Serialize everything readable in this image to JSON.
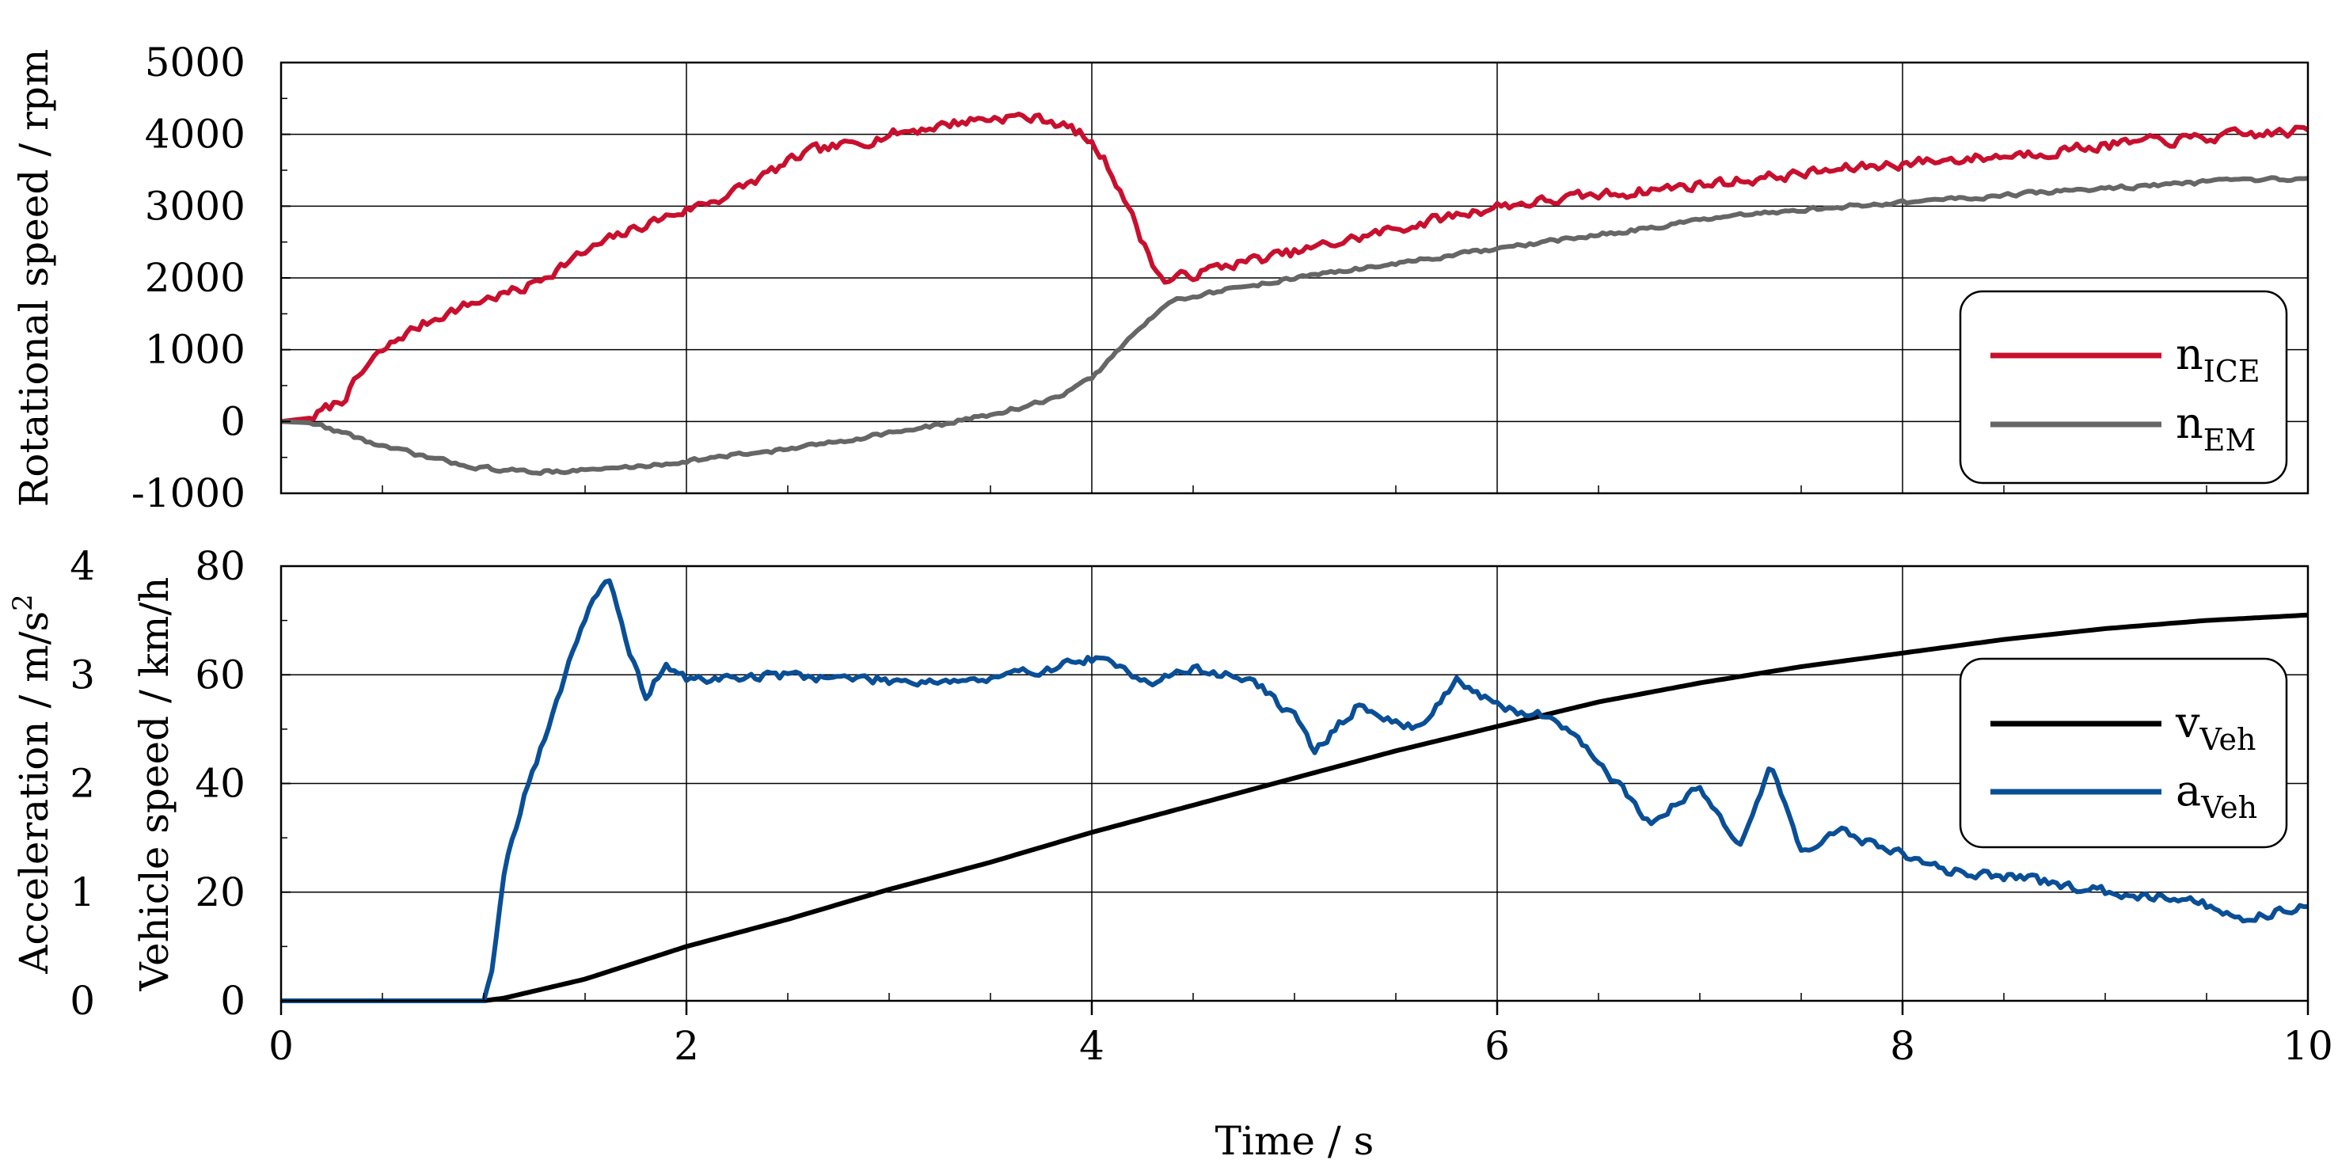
{
  "chart_data": [
    {
      "type": "line",
      "xlabel": "",
      "ylabel": "Rotational speed / rpm",
      "xlim": [
        0,
        10
      ],
      "ylim": [
        -1000,
        5000
      ],
      "xticks": [
        0,
        2,
        4,
        6,
        8,
        10
      ],
      "yticks": [
        -1000,
        0,
        1000,
        2000,
        3000,
        4000,
        5000
      ],
      "ytick_labels": [
        "-1000",
        "0",
        "1000",
        "2000",
        "3000",
        "4000",
        "5000"
      ],
      "grid": true,
      "legend": "right",
      "series": [
        {
          "name": "n",
          "subscript": "ICE",
          "color": "#c8102e",
          "x": [
            0,
            0.15,
            0.3,
            0.45,
            0.6,
            0.8,
            1.0,
            1.2,
            1.4,
            1.6,
            1.8,
            2.0,
            2.2,
            2.4,
            2.6,
            2.8,
            3.0,
            3.2,
            3.4,
            3.6,
            3.8,
            3.95,
            4.05,
            4.15,
            4.25,
            4.35,
            4.5,
            4.7,
            5.0,
            5.3,
            5.6,
            6.0,
            6.5,
            7.0,
            7.5,
            8.0,
            8.5,
            9.0,
            9.5,
            10.0
          ],
          "y": [
            0,
            50,
            300,
            850,
            1200,
            1500,
            1700,
            1850,
            2200,
            2500,
            2750,
            2950,
            3150,
            3450,
            3750,
            3850,
            4000,
            4100,
            4200,
            4250,
            4200,
            4000,
            3700,
            3200,
            2500,
            1950,
            2050,
            2200,
            2350,
            2550,
            2750,
            3000,
            3150,
            3300,
            3450,
            3600,
            3700,
            3850,
            3950,
            4050
          ],
          "noise": 120
        },
        {
          "name": "n",
          "subscript": "EM",
          "color": "#666666",
          "x": [
            0,
            0.15,
            0.3,
            0.5,
            0.8,
            1.0,
            1.2,
            1.5,
            1.8,
            2.0,
            2.3,
            2.6,
            2.9,
            3.2,
            3.5,
            3.8,
            4.0,
            4.2,
            4.4,
            4.6,
            4.8,
            5.0,
            5.5,
            6.0,
            6.5,
            7.0,
            7.5,
            8.0,
            8.5,
            9.0,
            9.5,
            10.0
          ],
          "y": [
            0,
            -20,
            -150,
            -350,
            -550,
            -650,
            -700,
            -680,
            -620,
            -550,
            -450,
            -350,
            -200,
            -80,
            100,
            300,
            600,
            1200,
            1700,
            1800,
            1900,
            2000,
            2200,
            2400,
            2600,
            2800,
            2950,
            3050,
            3150,
            3250,
            3330,
            3380
          ],
          "noise": 45
        }
      ]
    },
    {
      "type": "line",
      "xlabel": "Time / s",
      "ylabel": "Vehicle speed / km/h",
      "ylabel2": "Acceleration / m/s",
      "ylabel2_sup": "2",
      "xlim": [
        0,
        10
      ],
      "ylim": [
        0,
        80
      ],
      "ylim2": [
        0,
        4
      ],
      "xticks": [
        0,
        2,
        4,
        6,
        8,
        10
      ],
      "xtick_labels": [
        "0",
        "2",
        "4",
        "6",
        "8",
        "10"
      ],
      "yticks": [
        0,
        20,
        40,
        60,
        80
      ],
      "ytick_labels": [
        "0",
        "20",
        "40",
        "60",
        "80"
      ],
      "yticks2": [
        0,
        1,
        2,
        3,
        4
      ],
      "ytick_labels2": [
        "0",
        "1",
        "2",
        "3",
        "4"
      ],
      "grid": true,
      "legend": "right",
      "series": [
        {
          "name": "v",
          "subscript": "Veh",
          "color": "#000000",
          "axis": "left",
          "x": [
            0,
            1.0,
            1.1,
            1.5,
            2.0,
            2.5,
            3.0,
            3.5,
            4.0,
            4.5,
            5.0,
            5.5,
            6.0,
            6.5,
            7.0,
            7.5,
            8.0,
            8.5,
            9.0,
            9.5,
            10.0
          ],
          "y": [
            0,
            0,
            0.5,
            4,
            10,
            15,
            20.5,
            25.5,
            31,
            36,
            41,
            46,
            50.5,
            55,
            58.5,
            61.5,
            64,
            66.5,
            68.5,
            70,
            71
          ],
          "noise": 0
        },
        {
          "name": "a",
          "subscript": "Veh",
          "color": "#0a4f96",
          "axis": "right",
          "x": [
            0,
            1.0,
            1.05,
            1.1,
            1.2,
            1.3,
            1.45,
            1.55,
            1.62,
            1.7,
            1.8,
            1.9,
            2.0,
            2.5,
            3.0,
            3.5,
            4.0,
            4.3,
            4.5,
            4.8,
            5.0,
            5.1,
            5.3,
            5.6,
            5.8,
            6.0,
            6.3,
            6.5,
            6.75,
            7.0,
            7.2,
            7.35,
            7.5,
            7.7,
            8.0,
            8.2,
            8.5,
            9.0,
            9.4,
            9.7,
            10.0
          ],
          "y": [
            0,
            0,
            0.4,
            1.2,
            1.9,
            2.4,
            3.3,
            3.75,
            3.85,
            3.3,
            2.8,
            3.1,
            2.95,
            3.0,
            2.95,
            2.95,
            3.15,
            2.95,
            3.05,
            2.95,
            2.6,
            2.3,
            2.7,
            2.5,
            2.95,
            2.7,
            2.6,
            2.2,
            1.65,
            1.95,
            1.45,
            2.15,
            1.4,
            1.55,
            1.35,
            1.2,
            1.15,
            1.0,
            0.95,
            0.75,
            0.9
          ],
          "noise": 0.07
        }
      ]
    }
  ]
}
